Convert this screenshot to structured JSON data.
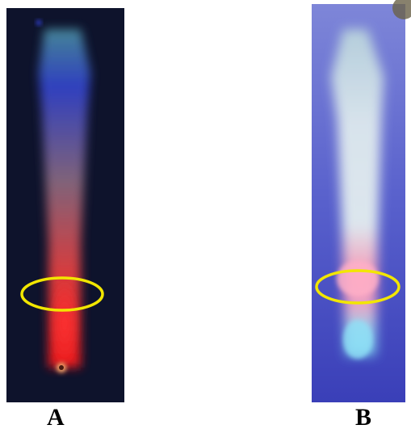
{
  "panels": [
    {
      "label": "A",
      "background_color": "#0b1026",
      "highlight_color": "#f2e600",
      "streak_colors": [
        "#4a8fa0",
        "#3344cc",
        "#8a6a80",
        "#e84040",
        "#ff1a1a"
      ]
    },
    {
      "label": "B",
      "background_color": "#4e58c8",
      "highlight_color": "#f2e600",
      "streak_colors": [
        "#b8d2dc",
        "#e4eef0",
        "#f6d2dc",
        "#ff8aa8",
        "#7ad8f0"
      ]
    }
  ]
}
